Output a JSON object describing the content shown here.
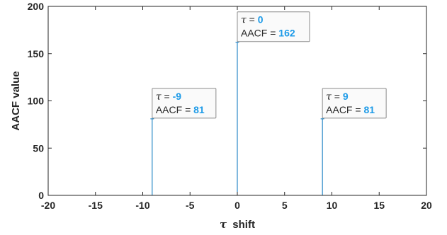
{
  "chart_data": {
    "type": "stem",
    "title": "",
    "xlabel": "shift",
    "xlabel_symbol": "τ",
    "ylabel": "AACF value",
    "xlim": [
      -20,
      20
    ],
    "ylim": [
      0,
      200
    ],
    "xticks": [
      -20,
      -15,
      -10,
      -5,
      0,
      5,
      10,
      15,
      20
    ],
    "yticks": [
      0,
      50,
      100,
      150,
      200
    ],
    "grid": false,
    "series": [
      {
        "x": [
          -17,
          -16,
          -15,
          -14,
          -13,
          -12,
          -11,
          -10,
          -9,
          -8,
          -7,
          -6,
          -5,
          -4,
          -3,
          -2,
          -1,
          0,
          1,
          2,
          3,
          4,
          5,
          6,
          7,
          8,
          9,
          10,
          11,
          12,
          13,
          14,
          15,
          16,
          17
        ],
        "y": [
          0,
          0,
          0,
          0,
          0,
          0,
          0,
          0,
          81,
          0,
          0,
          0,
          0,
          0,
          0,
          0,
          0,
          162,
          0,
          0,
          0,
          0,
          0,
          0,
          0,
          0,
          81,
          0,
          0,
          0,
          0,
          0,
          0,
          0,
          0
        ]
      }
    ],
    "annotations": [
      {
        "tau_symbol": "τ",
        "tau_eq": " = ",
        "tau_value": "-9",
        "aacf_label": "AACF = ",
        "aacf_value": "81",
        "x": -9,
        "y": 81
      },
      {
        "tau_symbol": "τ",
        "tau_eq": " = ",
        "tau_value": "0",
        "aacf_label": "AACF = ",
        "aacf_value": "162",
        "x": 0,
        "y": 162
      },
      {
        "tau_symbol": "τ",
        "tau_eq": " = ",
        "tau_value": "9",
        "aacf_label": "AACF = ",
        "aacf_value": "81",
        "x": 9,
        "y": 81
      }
    ],
    "colors": {
      "stem": "#0072BD",
      "datatip_value": "#1E9BE8",
      "axis": "#262626",
      "datatip_border": "#8C8C8C",
      "datatip_bg": "#FAFAFA"
    }
  }
}
